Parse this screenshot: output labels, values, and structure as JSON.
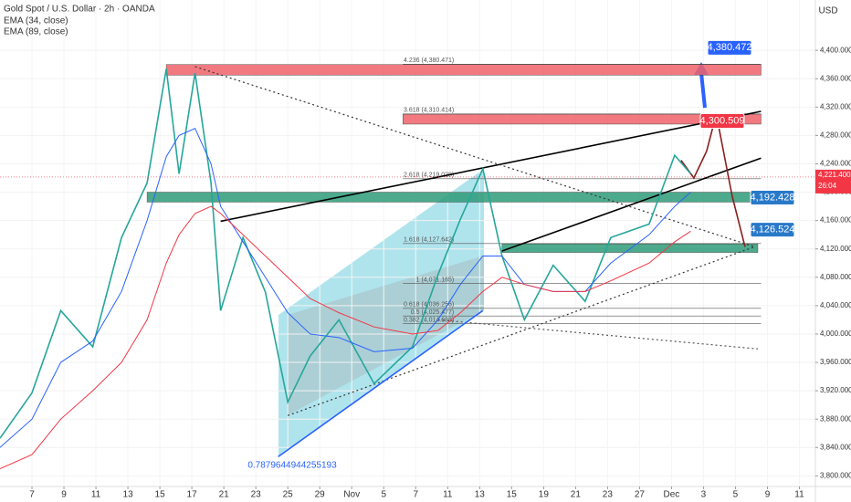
{
  "chart_data": {
    "type": "line",
    "title": "Gold Spot / U.S. Dollar · 2h · OANDA",
    "currency": "USD",
    "x": [
      -1,
      0,
      0.9,
      1.9,
      2.8,
      3.6,
      4.2,
      4.6,
      5.1,
      5.6,
      5.9,
      6.6,
      7.3,
      8,
      8.7,
      9.6,
      10.7,
      11.9,
      12.7,
      13.4,
      14.1,
      14.7,
      15.4,
      16.3,
      17.3,
      18.1,
      19.3,
      20.1,
      20.6
    ],
    "series": [
      {
        "color": "#26a69a",
        "values": [
          3853,
          3917,
          4033,
          3982,
          4136,
          4213,
          4374,
          4226,
          4368,
          4213,
          4033,
          4136,
          4059,
          3904,
          3969,
          4020,
          3930,
          3982,
          4084,
          4162,
          4233,
          4110,
          4020,
          4097,
          4046,
          4136,
          4155,
          4252,
          4226
        ]
      },
      {
        "name": "EMA (34, close)",
        "color": "#2962ff",
        "values": [
          3840,
          3880,
          3960,
          3990,
          4060,
          4160,
          4250,
          4280,
          4290,
          4240,
          4180,
          4130,
          4080,
          4030,
          4000,
          3995,
          3975,
          3980,
          4020,
          4070,
          4110,
          4110,
          4070,
          4060,
          4060,
          4100,
          4140,
          4180,
          4200
        ]
      },
      {
        "name": "EMA (89, close)",
        "color": "#f23645",
        "values": [
          3810,
          3830,
          3880,
          3920,
          3960,
          4020,
          4100,
          4140,
          4170,
          4180,
          4170,
          4140,
          4110,
          4080,
          4050,
          4030,
          4010,
          4000,
          4005,
          4030,
          4060,
          4080,
          4070,
          4060,
          4060,
          4075,
          4100,
          4130,
          4145
        ]
      }
    ],
    "xlim": [
      -1,
      24.5
    ],
    "xticks": [
      {
        "value": 0,
        "label": "7"
      },
      {
        "value": 1,
        "label": "9"
      },
      {
        "value": 2,
        "label": "11"
      },
      {
        "value": 3,
        "label": "13"
      },
      {
        "value": 4,
        "label": "15"
      },
      {
        "value": 5,
        "label": "17"
      },
      {
        "value": 6,
        "label": "21"
      },
      {
        "value": 7,
        "label": "23"
      },
      {
        "value": 8,
        "label": "25"
      },
      {
        "value": 9,
        "label": "29"
      },
      {
        "value": 10,
        "label": "Nov"
      },
      {
        "value": 11,
        "label": "5"
      },
      {
        "value": 12,
        "label": "7"
      },
      {
        "value": 13,
        "label": "11"
      },
      {
        "value": 14,
        "label": "13"
      },
      {
        "value": 15,
        "label": "15"
      },
      {
        "value": 16,
        "label": "19"
      },
      {
        "value": 17,
        "label": "21"
      },
      {
        "value": 18,
        "label": "23"
      },
      {
        "value": 19,
        "label": "27"
      },
      {
        "value": 20,
        "label": "Dec"
      },
      {
        "value": 21,
        "label": "3"
      },
      {
        "value": 22,
        "label": "5"
      },
      {
        "value": 23,
        "label": "9"
      },
      {
        "value": 24,
        "label": "11"
      }
    ],
    "ylim": [
      3785,
      4471
    ],
    "yticks": [
      {
        "value": 3800,
        "label": "3,800.000"
      },
      {
        "value": 3840,
        "label": "3,840.000"
      },
      {
        "value": 3880,
        "label": "3,880.000"
      },
      {
        "value": 3920,
        "label": "3,920.000"
      },
      {
        "value": 3960,
        "label": "3,960.000"
      },
      {
        "value": 4000,
        "label": "4,000.000"
      },
      {
        "value": 4040,
        "label": "4,040.000"
      },
      {
        "value": 4080,
        "label": "4,080.000"
      },
      {
        "value": 4120,
        "label": "4,120.000"
      },
      {
        "value": 4160,
        "label": "4,160.000"
      },
      {
        "value": 4200,
        "label": "4,200.000"
      },
      {
        "value": 4240,
        "label": "4,240.000"
      },
      {
        "value": 4280,
        "label": "4,280.000"
      },
      {
        "value": 4320,
        "label": "4,320.000"
      },
      {
        "value": 4360,
        "label": "4,360.000"
      },
      {
        "value": 4400,
        "label": "4,400.000"
      }
    ],
    "last_price": {
      "value": 4221.4,
      "label": "4,221.400"
    },
    "countdown": "26:04",
    "zones": [
      {
        "from": 4.2,
        "to": 22.8,
        "low": 4365,
        "high": 4380,
        "color": "#f0626b"
      },
      {
        "from": 11.6,
        "to": 22.8,
        "low": 4296,
        "high": 4310,
        "color": "#f0626b"
      },
      {
        "from": 3.6,
        "to": 22.7,
        "low": 4186,
        "high": 4200,
        "color": "#2e9c78"
      },
      {
        "from": 14.7,
        "to": 22.7,
        "low": 4115,
        "high": 4127,
        "color": "#2e9c78"
      }
    ],
    "fib_levels": [
      {
        "value": 4380.471,
        "label": "4.236 (4,380.471)"
      },
      {
        "value": 4310.414,
        "label": "3.618 (4,310.414)"
      },
      {
        "value": 4219.028,
        "label": "2.618 (4,219.028)"
      },
      {
        "value": 4127.642,
        "label": "1.618 (4,127.642)"
      },
      {
        "value": 4071.165,
        "label": "1 (4,071.165)"
      },
      {
        "value": 4036.256,
        "label": "0.618 (4,036.256)"
      },
      {
        "value": 4025.477,
        "label": "0.5 (4,025.477)"
      },
      {
        "value": 4014.688,
        "label": "0.382 (4,014.688)"
      }
    ],
    "targets": [
      {
        "value": 4380.472,
        "label": "4,380.472",
        "color": "#2962ff"
      },
      {
        "value": 4300.509,
        "label": "4,300.509",
        "color": "#f23645"
      },
      {
        "value": 4192.428,
        "label": "4,192.428",
        "color": "#2979c9"
      },
      {
        "value": 4126.524,
        "label": "4,126.524",
        "color": "#2979c9"
      }
    ],
    "trendlines": [
      {
        "color": "#000000",
        "points": [
          [
            5.9,
            4159
          ],
          [
            22.8,
            4314
          ]
        ]
      },
      {
        "color": "#000000",
        "points": [
          [
            14.7,
            4117
          ],
          [
            22.8,
            4248
          ]
        ]
      },
      {
        "color": "#333333",
        "dash": true,
        "points": [
          [
            5.1,
            4377
          ],
          [
            22.6,
            4123
          ]
        ]
      },
      {
        "color": "#333333",
        "dash": true,
        "points": [
          [
            8,
            3885
          ],
          [
            22.6,
            4123
          ]
        ]
      },
      {
        "color": "#555555",
        "dash": true,
        "points": [
          [
            12.7,
            4020
          ],
          [
            22.7,
            3979
          ]
        ]
      },
      {
        "color": "#2962ff",
        "points": [
          [
            7.7,
            3827
          ],
          [
            14.1,
            4033
          ]
        ]
      },
      {
        "color": "#8b1e1e",
        "points": [
          [
            20.3,
            4245
          ],
          [
            20.7,
            4220
          ],
          [
            21.1,
            4258
          ],
          [
            21.4,
            4310
          ],
          [
            21.9,
            4194
          ],
          [
            22.3,
            4123
          ]
        ]
      }
    ],
    "ratio_label": "0.7879644944255193"
  }
}
